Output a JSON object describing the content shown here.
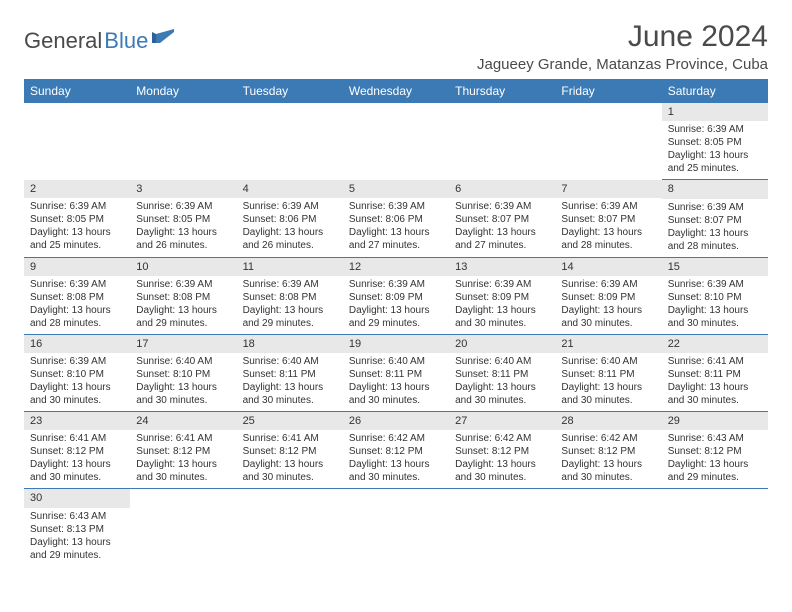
{
  "logo": {
    "general": "General",
    "blue": "Blue"
  },
  "title": "June 2024",
  "location": "Jagueey Grande, Matanzas Province, Cuba",
  "colors": {
    "header_bg": "#3b7ab5",
    "header_text": "#ffffff",
    "daynum_bg": "#e8e8e8",
    "row_border": "#3b7ab5",
    "text": "#333333"
  },
  "weekdays": [
    "Sunday",
    "Monday",
    "Tuesday",
    "Wednesday",
    "Thursday",
    "Friday",
    "Saturday"
  ],
  "weeks": [
    [
      null,
      null,
      null,
      null,
      null,
      null,
      {
        "n": "1",
        "sunrise": "Sunrise: 6:39 AM",
        "sunset": "Sunset: 8:05 PM",
        "daylight": "Daylight: 13 hours and 25 minutes."
      }
    ],
    [
      {
        "n": "2",
        "sunrise": "Sunrise: 6:39 AM",
        "sunset": "Sunset: 8:05 PM",
        "daylight": "Daylight: 13 hours and 25 minutes."
      },
      {
        "n": "3",
        "sunrise": "Sunrise: 6:39 AM",
        "sunset": "Sunset: 8:05 PM",
        "daylight": "Daylight: 13 hours and 26 minutes."
      },
      {
        "n": "4",
        "sunrise": "Sunrise: 6:39 AM",
        "sunset": "Sunset: 8:06 PM",
        "daylight": "Daylight: 13 hours and 26 minutes."
      },
      {
        "n": "5",
        "sunrise": "Sunrise: 6:39 AM",
        "sunset": "Sunset: 8:06 PM",
        "daylight": "Daylight: 13 hours and 27 minutes."
      },
      {
        "n": "6",
        "sunrise": "Sunrise: 6:39 AM",
        "sunset": "Sunset: 8:07 PM",
        "daylight": "Daylight: 13 hours and 27 minutes."
      },
      {
        "n": "7",
        "sunrise": "Sunrise: 6:39 AM",
        "sunset": "Sunset: 8:07 PM",
        "daylight": "Daylight: 13 hours and 28 minutes."
      },
      {
        "n": "8",
        "sunrise": "Sunrise: 6:39 AM",
        "sunset": "Sunset: 8:07 PM",
        "daylight": "Daylight: 13 hours and 28 minutes."
      }
    ],
    [
      {
        "n": "9",
        "sunrise": "Sunrise: 6:39 AM",
        "sunset": "Sunset: 8:08 PM",
        "daylight": "Daylight: 13 hours and 28 minutes."
      },
      {
        "n": "10",
        "sunrise": "Sunrise: 6:39 AM",
        "sunset": "Sunset: 8:08 PM",
        "daylight": "Daylight: 13 hours and 29 minutes."
      },
      {
        "n": "11",
        "sunrise": "Sunrise: 6:39 AM",
        "sunset": "Sunset: 8:08 PM",
        "daylight": "Daylight: 13 hours and 29 minutes."
      },
      {
        "n": "12",
        "sunrise": "Sunrise: 6:39 AM",
        "sunset": "Sunset: 8:09 PM",
        "daylight": "Daylight: 13 hours and 29 minutes."
      },
      {
        "n": "13",
        "sunrise": "Sunrise: 6:39 AM",
        "sunset": "Sunset: 8:09 PM",
        "daylight": "Daylight: 13 hours and 30 minutes."
      },
      {
        "n": "14",
        "sunrise": "Sunrise: 6:39 AM",
        "sunset": "Sunset: 8:09 PM",
        "daylight": "Daylight: 13 hours and 30 minutes."
      },
      {
        "n": "15",
        "sunrise": "Sunrise: 6:39 AM",
        "sunset": "Sunset: 8:10 PM",
        "daylight": "Daylight: 13 hours and 30 minutes."
      }
    ],
    [
      {
        "n": "16",
        "sunrise": "Sunrise: 6:39 AM",
        "sunset": "Sunset: 8:10 PM",
        "daylight": "Daylight: 13 hours and 30 minutes."
      },
      {
        "n": "17",
        "sunrise": "Sunrise: 6:40 AM",
        "sunset": "Sunset: 8:10 PM",
        "daylight": "Daylight: 13 hours and 30 minutes."
      },
      {
        "n": "18",
        "sunrise": "Sunrise: 6:40 AM",
        "sunset": "Sunset: 8:11 PM",
        "daylight": "Daylight: 13 hours and 30 minutes."
      },
      {
        "n": "19",
        "sunrise": "Sunrise: 6:40 AM",
        "sunset": "Sunset: 8:11 PM",
        "daylight": "Daylight: 13 hours and 30 minutes."
      },
      {
        "n": "20",
        "sunrise": "Sunrise: 6:40 AM",
        "sunset": "Sunset: 8:11 PM",
        "daylight": "Daylight: 13 hours and 30 minutes."
      },
      {
        "n": "21",
        "sunrise": "Sunrise: 6:40 AM",
        "sunset": "Sunset: 8:11 PM",
        "daylight": "Daylight: 13 hours and 30 minutes."
      },
      {
        "n": "22",
        "sunrise": "Sunrise: 6:41 AM",
        "sunset": "Sunset: 8:11 PM",
        "daylight": "Daylight: 13 hours and 30 minutes."
      }
    ],
    [
      {
        "n": "23",
        "sunrise": "Sunrise: 6:41 AM",
        "sunset": "Sunset: 8:12 PM",
        "daylight": "Daylight: 13 hours and 30 minutes."
      },
      {
        "n": "24",
        "sunrise": "Sunrise: 6:41 AM",
        "sunset": "Sunset: 8:12 PM",
        "daylight": "Daylight: 13 hours and 30 minutes."
      },
      {
        "n": "25",
        "sunrise": "Sunrise: 6:41 AM",
        "sunset": "Sunset: 8:12 PM",
        "daylight": "Daylight: 13 hours and 30 minutes."
      },
      {
        "n": "26",
        "sunrise": "Sunrise: 6:42 AM",
        "sunset": "Sunset: 8:12 PM",
        "daylight": "Daylight: 13 hours and 30 minutes."
      },
      {
        "n": "27",
        "sunrise": "Sunrise: 6:42 AM",
        "sunset": "Sunset: 8:12 PM",
        "daylight": "Daylight: 13 hours and 30 minutes."
      },
      {
        "n": "28",
        "sunrise": "Sunrise: 6:42 AM",
        "sunset": "Sunset: 8:12 PM",
        "daylight": "Daylight: 13 hours and 30 minutes."
      },
      {
        "n": "29",
        "sunrise": "Sunrise: 6:43 AM",
        "sunset": "Sunset: 8:12 PM",
        "daylight": "Daylight: 13 hours and 29 minutes."
      }
    ],
    [
      {
        "n": "30",
        "sunrise": "Sunrise: 6:43 AM",
        "sunset": "Sunset: 8:13 PM",
        "daylight": "Daylight: 13 hours and 29 minutes."
      },
      null,
      null,
      null,
      null,
      null,
      null
    ]
  ]
}
